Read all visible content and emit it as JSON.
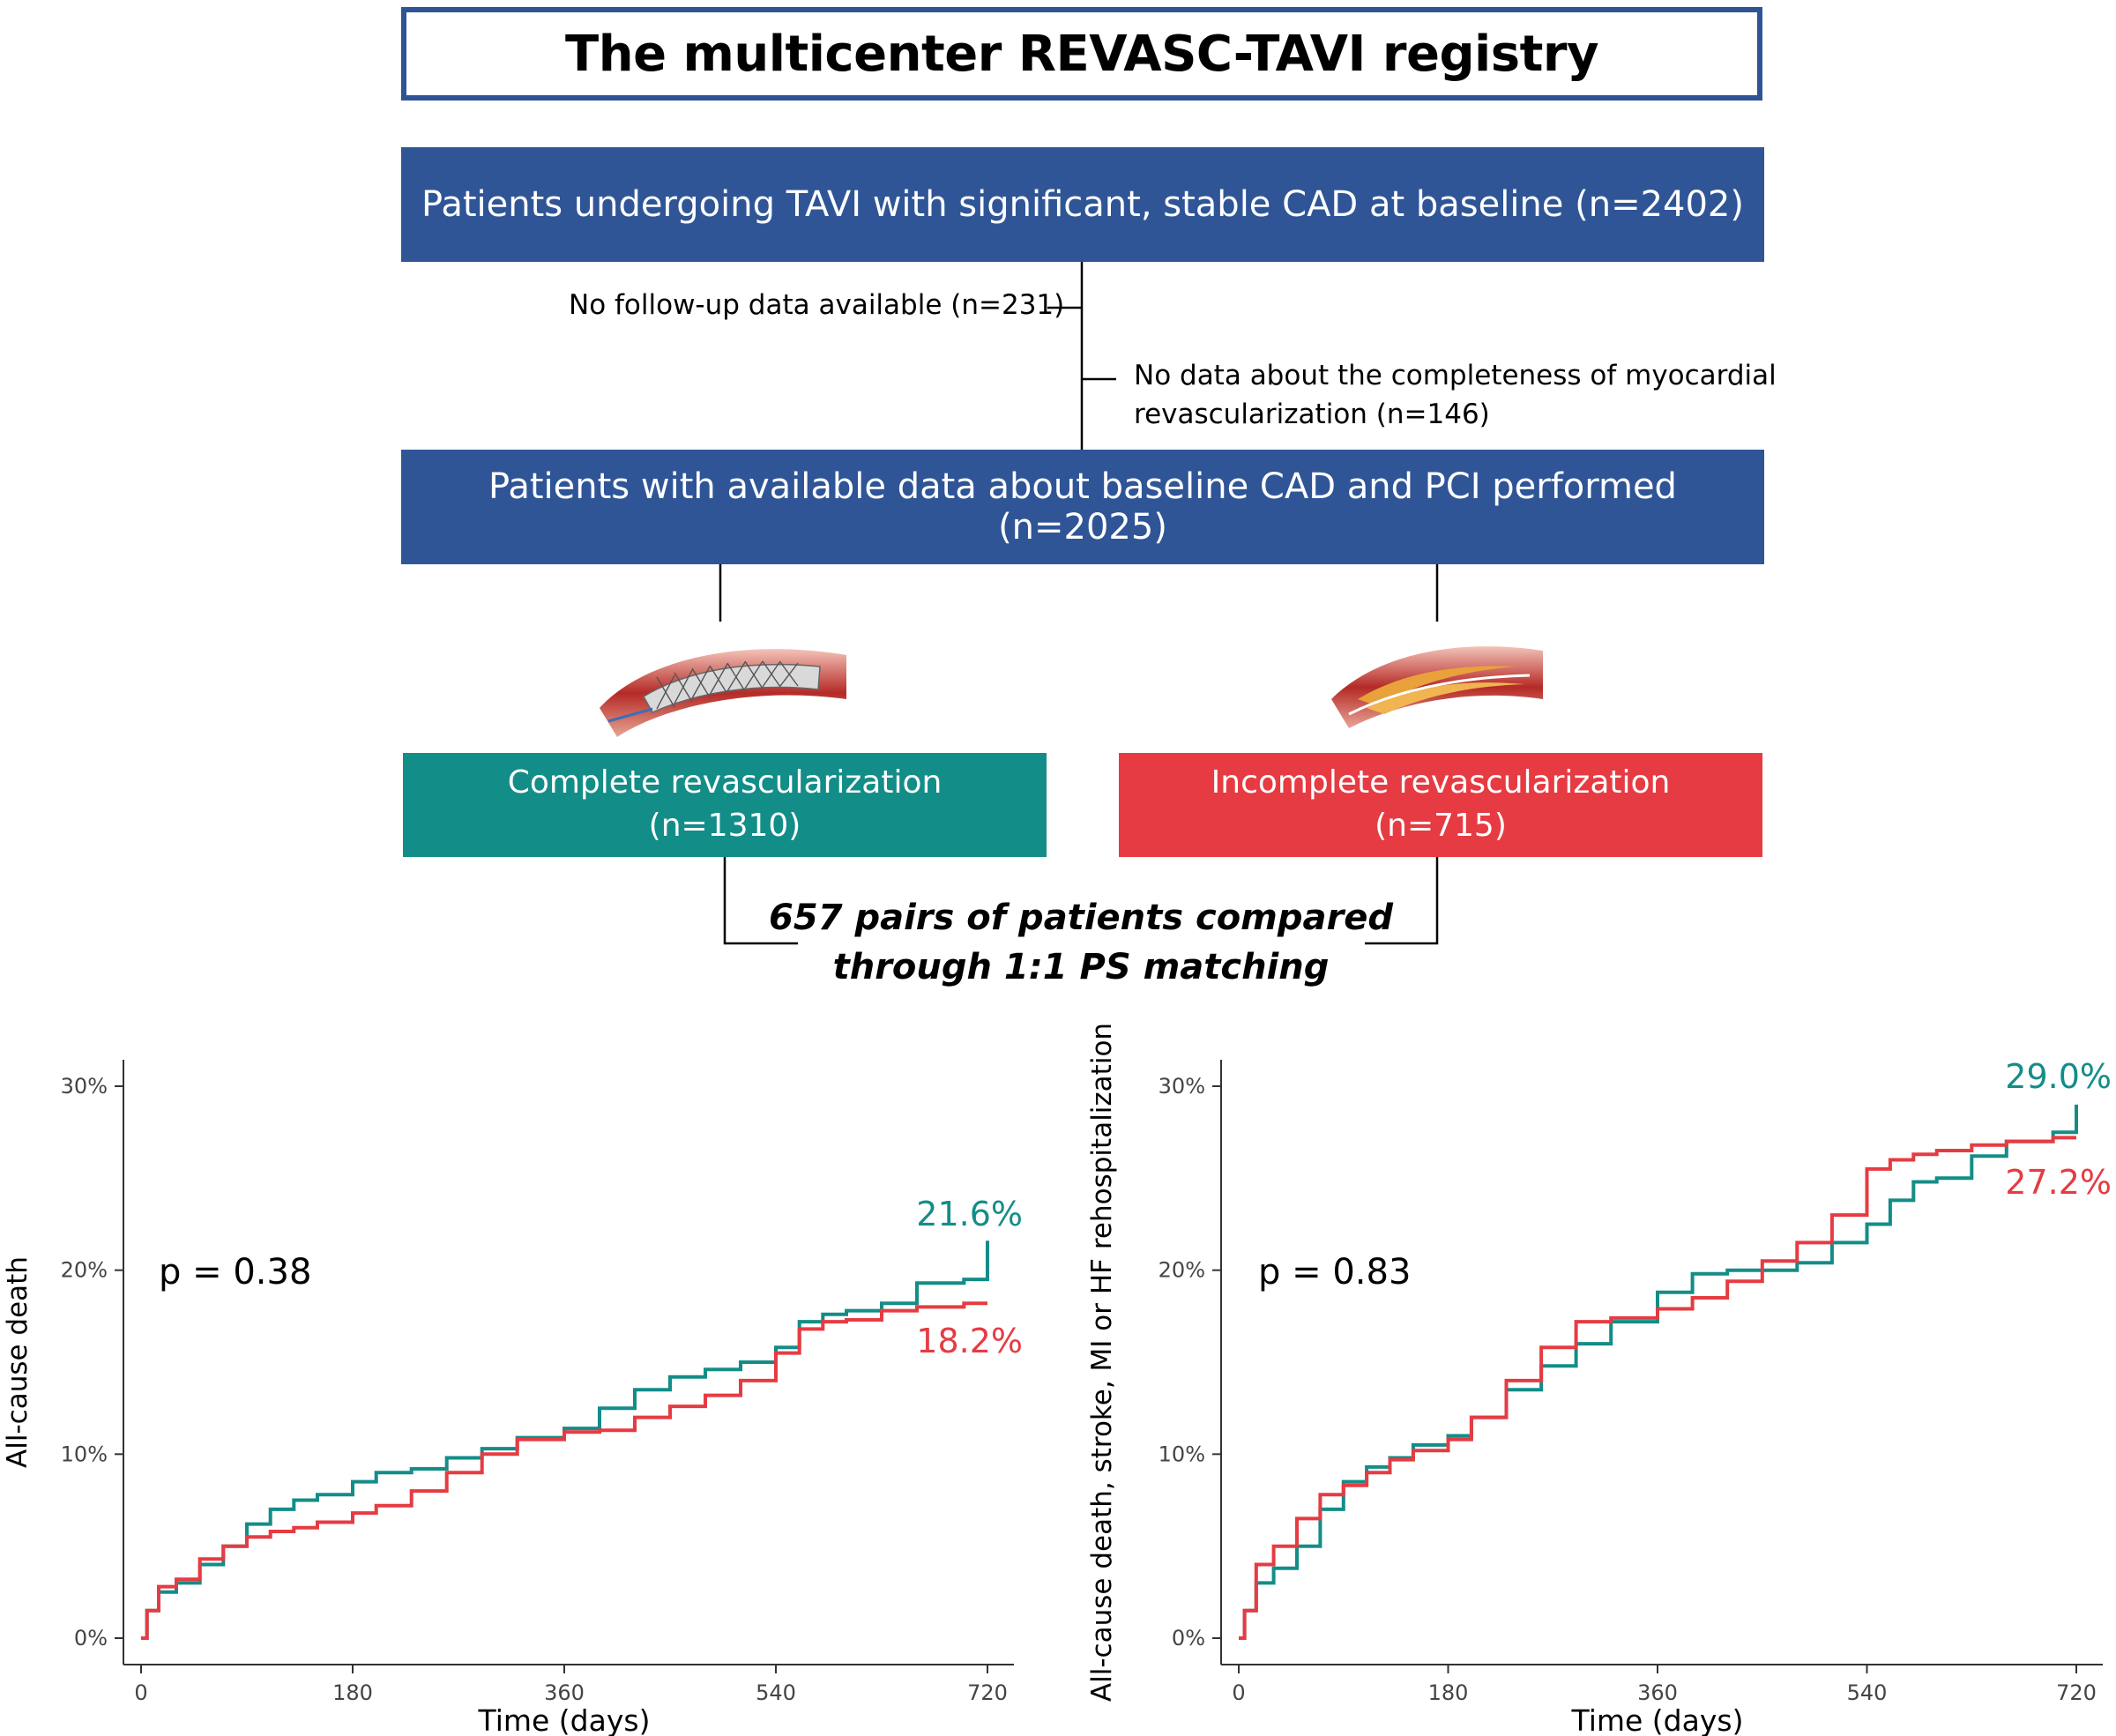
{
  "title": "The multicenter REVASC-TAVI registry",
  "flow": {
    "box1": "Patients undergoing TAVI with significant, stable CAD at baseline (n=2402)",
    "exclusion1": "No follow-up data available (n=231)",
    "exclusion2_line1": "No data about the completeness of myocardial",
    "exclusion2_line2": "revascularization (n=146)",
    "box2": "Patients with available data about baseline CAD and PCI performed (n=2025)",
    "arm_complete": {
      "label": "Complete revascularization",
      "n": "(n=1310)",
      "color": "#138d88"
    },
    "arm_incomplete": {
      "label": "Incomplete revascularization",
      "n": "(n=715)",
      "color": "#e63b42"
    },
    "matching_line1": "657 pairs of patients compared",
    "matching_line2": "through 1:1 PS matching"
  },
  "colors": {
    "complete": "#138d88",
    "incomplete": "#e63b42",
    "box_blue": "#2f5597"
  },
  "chart_data": [
    {
      "type": "line",
      "ylabel": "All-cause death",
      "xlabel": "Time (days)",
      "xlim": [
        0,
        720
      ],
      "ylim": [
        0,
        30
      ],
      "xticks": [
        "0",
        "180",
        "360",
        "540",
        "720"
      ],
      "yticks": [
        "0%",
        "10%",
        "20%",
        "30%"
      ],
      "annotation": "p = 0.38",
      "step": true,
      "series": [
        {
          "name": "Complete revascularization",
          "color": "#138d88",
          "end_label": "21.6%",
          "x": [
            0,
            5,
            15,
            30,
            50,
            70,
            90,
            110,
            130,
            150,
            180,
            200,
            230,
            260,
            290,
            320,
            360,
            390,
            420,
            450,
            480,
            510,
            540,
            560,
            580,
            600,
            630,
            660,
            700,
            720
          ],
          "y": [
            0,
            1.5,
            2.5,
            3.0,
            4.0,
            5.0,
            6.2,
            7.0,
            7.5,
            7.8,
            8.5,
            9.0,
            9.2,
            9.8,
            10.3,
            10.9,
            11.4,
            12.5,
            13.5,
            14.2,
            14.6,
            15.0,
            15.8,
            17.2,
            17.6,
            17.8,
            18.2,
            19.3,
            19.5,
            21.6
          ]
        },
        {
          "name": "Incomplete revascularization",
          "color": "#e63b42",
          "end_label": "18.2%",
          "x": [
            0,
            5,
            15,
            30,
            50,
            70,
            90,
            110,
            130,
            150,
            180,
            200,
            230,
            260,
            290,
            320,
            360,
            390,
            420,
            450,
            480,
            510,
            540,
            560,
            580,
            600,
            630,
            660,
            700,
            720
          ],
          "y": [
            0,
            1.5,
            2.8,
            3.2,
            4.3,
            5.0,
            5.5,
            5.8,
            6.0,
            6.3,
            6.8,
            7.2,
            8.0,
            9.0,
            10.0,
            10.8,
            11.2,
            11.3,
            12.0,
            12.6,
            13.2,
            14.0,
            15.5,
            16.8,
            17.2,
            17.3,
            17.8,
            18.0,
            18.2,
            18.2
          ]
        }
      ]
    },
    {
      "type": "line",
      "ylabel": "All-cause death, stroke, MI or HF rehospitalization",
      "xlabel": "Time (days)",
      "xlim": [
        0,
        720
      ],
      "ylim": [
        0,
        30
      ],
      "xticks": [
        "0",
        "180",
        "360",
        "540",
        "720"
      ],
      "yticks": [
        "0%",
        "10%",
        "20%",
        "30%"
      ],
      "annotation": "p = 0.83",
      "step": true,
      "series": [
        {
          "name": "Complete revascularization",
          "color": "#138d88",
          "end_label": "29.0%",
          "x": [
            0,
            5,
            15,
            30,
            50,
            70,
            90,
            110,
            130,
            150,
            180,
            200,
            230,
            260,
            290,
            320,
            360,
            390,
            420,
            450,
            480,
            510,
            540,
            560,
            580,
            600,
            630,
            660,
            700,
            720
          ],
          "y": [
            0,
            1.5,
            3.0,
            3.8,
            5.0,
            7.0,
            8.5,
            9.3,
            9.8,
            10.5,
            11.0,
            12.0,
            13.5,
            14.8,
            16.0,
            17.2,
            18.8,
            19.8,
            20.0,
            20.0,
            20.4,
            21.5,
            22.5,
            23.8,
            24.8,
            25.0,
            26.2,
            27.0,
            27.5,
            29.0
          ]
        },
        {
          "name": "Incomplete revascularization",
          "color": "#e63b42",
          "end_label": "27.2%",
          "x": [
            0,
            5,
            15,
            30,
            50,
            70,
            90,
            110,
            130,
            150,
            180,
            200,
            230,
            260,
            290,
            320,
            360,
            390,
            420,
            450,
            480,
            510,
            540,
            560,
            580,
            600,
            630,
            660,
            700,
            720
          ],
          "y": [
            0,
            1.5,
            4.0,
            5.0,
            6.5,
            7.8,
            8.3,
            9.0,
            9.7,
            10.2,
            10.8,
            12.0,
            14.0,
            15.8,
            17.2,
            17.4,
            17.9,
            18.5,
            19.4,
            20.5,
            21.5,
            23.0,
            25.5,
            26.0,
            26.3,
            26.5,
            26.8,
            27.0,
            27.2,
            27.2
          ]
        }
      ]
    }
  ]
}
